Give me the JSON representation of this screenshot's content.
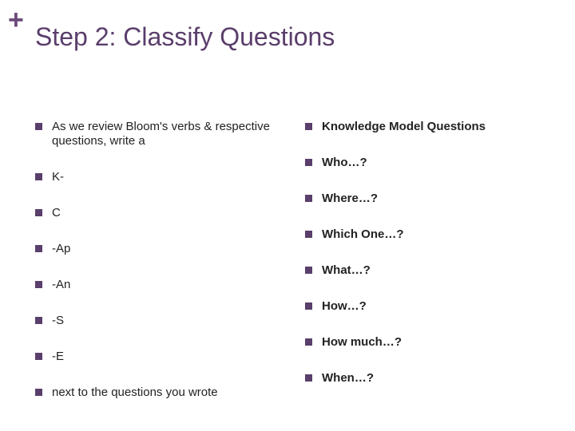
{
  "plus_symbol": "+",
  "title": "Step 2:  Classify Questions",
  "left_items": [
    {
      "text": "As we review Bloom's verbs & respective questions, write a",
      "bold": false
    },
    {
      "text": " K-",
      "bold": false
    },
    {
      "text": "C",
      "bold": false
    },
    {
      "text": "-Ap",
      "bold": false
    },
    {
      "text": "-An",
      "bold": false
    },
    {
      "text": "-S",
      "bold": false
    },
    {
      "text": "-E",
      "bold": false
    },
    {
      "text": " next to the questions you wrote",
      "bold": false
    }
  ],
  "right_items": [
    {
      "text": "Knowledge Model Questions",
      "bold": true
    },
    {
      "text": "Who…?",
      "bold": true
    },
    {
      "text": "Where…?",
      "bold": true
    },
    {
      "text": "Which One…?",
      "bold": true
    },
    {
      "text": "What…?",
      "bold": true
    },
    {
      "text": "How…?",
      "bold": true
    },
    {
      "text": "How much…?",
      "bold": true
    },
    {
      "text": "When…?",
      "bold": true
    }
  ],
  "colors": {
    "accent": "#5a3e6b",
    "plus": "#6b4a7a",
    "text": "#222222",
    "background": "#ffffff"
  },
  "typography": {
    "title_fontsize": 32,
    "body_fontsize": 15,
    "plus_fontsize": 34
  }
}
